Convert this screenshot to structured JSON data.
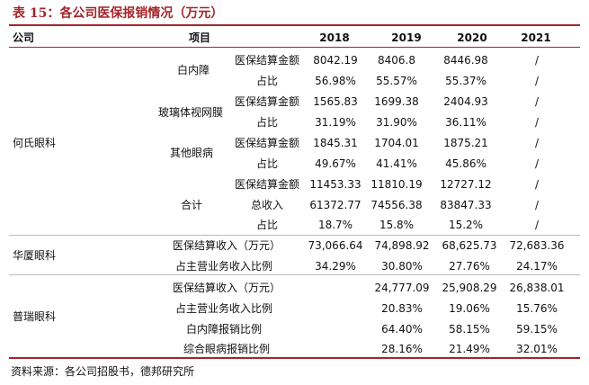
{
  "title": "表 15：各公司医保报销情况（万元）",
  "header": {
    "company": "公司",
    "item": "项目",
    "years": [
      "2018",
      "2019",
      "2020",
      "2021"
    ]
  },
  "he": {
    "company": "何氏眼科",
    "groups": [
      {
        "name": "白内障",
        "rows": [
          {
            "label": "医保结算金额",
            "values": [
              "8042.19",
              "8406.8",
              "8446.98",
              "/"
            ]
          },
          {
            "label": "占比",
            "values": [
              "56.98%",
              "55.57%",
              "55.37%",
              "/"
            ]
          }
        ]
      },
      {
        "name": "玻璃体视网膜",
        "rows": [
          {
            "label": "医保结算金额",
            "values": [
              "1565.83",
              "1699.38",
              "2404.93",
              "/"
            ]
          },
          {
            "label": "占比",
            "values": [
              "31.19%",
              "31.90%",
              "36.11%",
              "/"
            ]
          }
        ]
      },
      {
        "name": "其他眼病",
        "rows": [
          {
            "label": "医保结算金额",
            "values": [
              "1845.31",
              "1704.01",
              "1875.21",
              "/"
            ]
          },
          {
            "label": "占比",
            "values": [
              "49.67%",
              "41.41%",
              "45.86%",
              "/"
            ]
          }
        ]
      },
      {
        "name": "合计",
        "rows": [
          {
            "label": "医保结算金额",
            "values": [
              "11453.33",
              "11810.19",
              "12727.12",
              "/"
            ]
          },
          {
            "label": "总收入",
            "values": [
              "61372.77",
              "74556.38",
              "83847.33",
              "/"
            ]
          },
          {
            "label": "占比",
            "values": [
              "18.7%",
              "15.8%",
              "15.2%",
              "/"
            ]
          }
        ]
      }
    ]
  },
  "huaxia": {
    "company": "华厦眼科",
    "rows": [
      {
        "label": "医保结算收入（万元）",
        "values": [
          "73,066.64",
          "74,898.92",
          "68,625.73",
          "72,683.36"
        ]
      },
      {
        "label": "占主营业务收入比例",
        "values": [
          "34.29%",
          "30.80%",
          "27.76%",
          "24.17%"
        ]
      }
    ]
  },
  "purui": {
    "company": "普瑞眼科",
    "rows": [
      {
        "label": "医保结算收入（万元）",
        "values": [
          "",
          "24,777.09",
          "25,908.29",
          "26,838.01"
        ]
      },
      {
        "label": "占主营业务收入比例",
        "values": [
          "",
          "20.83%",
          "19.06%",
          "15.76%"
        ]
      },
      {
        "label": "白内障报销比例",
        "values": [
          "",
          "64.40%",
          "58.15%",
          "59.15%"
        ]
      },
      {
        "label": "综合眼病报销比例",
        "values": [
          "",
          "28.16%",
          "21.49%",
          "32.01%"
        ]
      }
    ]
  },
  "source": "资料来源：各公司招股书，德邦研究所"
}
